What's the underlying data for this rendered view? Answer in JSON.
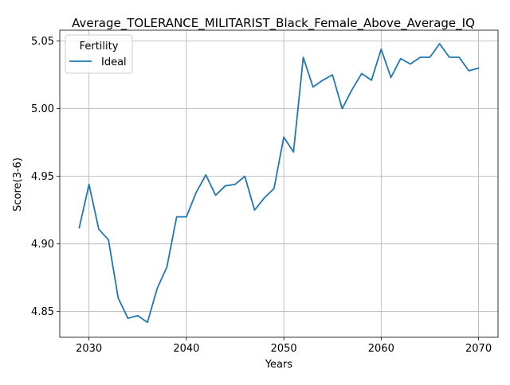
{
  "chart_data": {
    "type": "line",
    "title": "Average_TOLERANCE_MILITARIST_Black_Female_Above_Average_IQ",
    "xlabel": "Years",
    "ylabel": "Score(3-6)",
    "xlim": [
      2027,
      2072
    ],
    "ylim": [
      4.831,
      5.058
    ],
    "xticks": [
      2030,
      2040,
      2050,
      2060,
      2070
    ],
    "yticks": [
      4.85,
      4.9,
      4.95,
      5.0,
      5.05
    ],
    "ytick_labels": [
      "4.85",
      "4.90",
      "4.95",
      "5.00",
      "5.05"
    ],
    "grid": true,
    "legend": {
      "title": "Fertility",
      "placement": "top-left"
    },
    "series": [
      {
        "name": "Ideal",
        "color": "#1f77b4",
        "x": [
          2029,
          2030,
          2031,
          2032,
          2033,
          2034,
          2035,
          2036,
          2037,
          2038,
          2039,
          2040,
          2041,
          2042,
          2043,
          2044,
          2045,
          2046,
          2047,
          2048,
          2049,
          2050,
          2051,
          2052,
          2053,
          2054,
          2055,
          2056,
          2057,
          2058,
          2059,
          2060,
          2061,
          2062,
          2063,
          2064,
          2065,
          2066,
          2067,
          2068,
          2069,
          2070
        ],
        "y": [
          4.912,
          4.944,
          4.911,
          4.903,
          4.86,
          4.845,
          4.847,
          4.842,
          4.867,
          4.883,
          4.92,
          4.92,
          4.938,
          4.951,
          4.936,
          4.943,
          4.944,
          4.95,
          4.925,
          4.934,
          4.941,
          4.979,
          4.968,
          5.038,
          5.016,
          5.021,
          5.025,
          5.0,
          5.014,
          5.026,
          5.021,
          5.044,
          5.023,
          5.037,
          5.033,
          5.038,
          5.038,
          5.048,
          5.038,
          5.038,
          5.028,
          5.03
        ]
      }
    ]
  }
}
